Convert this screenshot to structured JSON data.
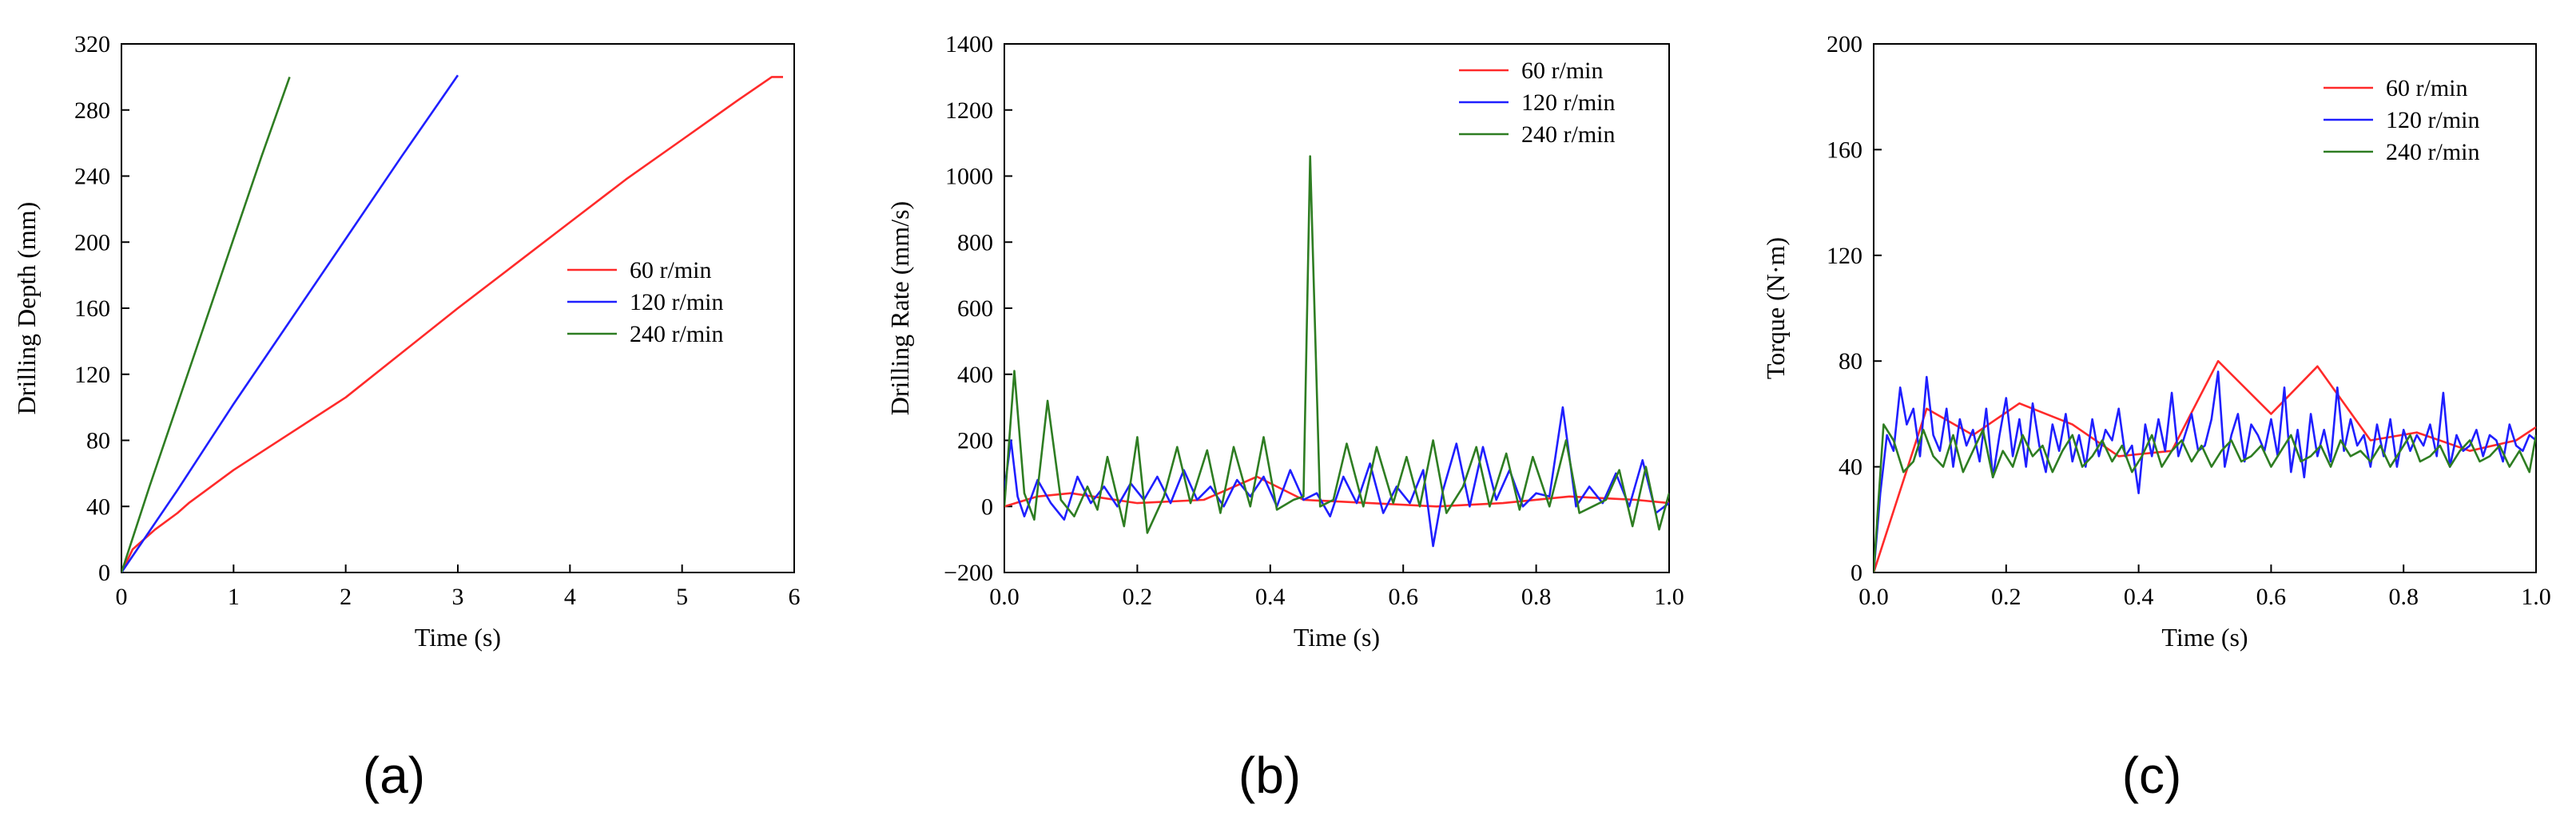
{
  "colors": {
    "s60": "#ff2a2a",
    "s120": "#1f1fff",
    "s240": "#2e7d22"
  },
  "chart_data": [
    {
      "type": "line",
      "panel_label": "(a)",
      "xlabel": "Time (s)",
      "ylabel": "Drilling Depth (mm)",
      "xlim": [
        0,
        6
      ],
      "ylim": [
        0,
        320
      ],
      "xticks": [
        0,
        1,
        2,
        3,
        4,
        5,
        6
      ],
      "xtick_labels": [
        "0",
        "1",
        "2",
        "3",
        "4",
        "5",
        "6"
      ],
      "yticks": [
        0,
        40,
        80,
        120,
        160,
        200,
        240,
        280,
        320
      ],
      "ytick_labels": [
        "0",
        "40",
        "80",
        "120",
        "160",
        "200",
        "240",
        "280",
        "320"
      ],
      "legend_position": "middle-right",
      "series": [
        {
          "name": "60 r/min",
          "color": "#ff2a2a",
          "x": [
            0,
            0.1,
            0.3,
            0.5,
            0.6,
            1.0,
            1.5,
            2.0,
            2.5,
            3.0,
            3.5,
            4.0,
            4.5,
            5.0,
            5.5,
            5.8,
            5.9
          ],
          "y": [
            0,
            14,
            26,
            36,
            42,
            62,
            84,
            106,
            133,
            160,
            186,
            212,
            238,
            262,
            286,
            300,
            300
          ]
        },
        {
          "name": "120 r/min",
          "color": "#1f1fff",
          "x": [
            0,
            0.5,
            1.0,
            1.5,
            2.0,
            2.5,
            3.0
          ],
          "y": [
            0,
            50,
            102,
            152,
            202,
            252,
            301
          ]
        },
        {
          "name": "240 r/min",
          "color": "#2e7d22",
          "x": [
            0,
            0.25,
            0.5,
            0.75,
            1.0,
            1.25,
            1.5
          ],
          "y": [
            0,
            52,
            102,
            152,
            202,
            252,
            300
          ]
        }
      ]
    },
    {
      "type": "line",
      "panel_label": "(b)",
      "xlabel": "Time (s)",
      "ylabel": "Drilling Rate (mm/s)",
      "xlim": [
        0,
        1
      ],
      "ylim": [
        -200,
        1400
      ],
      "xticks": [
        0,
        0.2,
        0.4,
        0.6,
        0.8,
        1.0
      ],
      "xtick_labels": [
        "0.0",
        "0.2",
        "0.4",
        "0.6",
        "0.8",
        "1.0"
      ],
      "yticks": [
        -200,
        0,
        200,
        400,
        600,
        800,
        1000,
        1200,
        1400
      ],
      "ytick_labels": [
        "−200",
        "0",
        "200",
        "400",
        "600",
        "800",
        "1000",
        "1200",
        "1400"
      ],
      "legend_position": "top-right",
      "series": [
        {
          "name": "60 r/min",
          "color": "#ff2a2a",
          "x": [
            0,
            0.05,
            0.1,
            0.2,
            0.3,
            0.38,
            0.45,
            0.55,
            0.65,
            0.75,
            0.85,
            0.95,
            1.0
          ],
          "y": [
            0,
            30,
            40,
            10,
            20,
            90,
            20,
            10,
            0,
            10,
            30,
            20,
            10
          ]
        },
        {
          "name": "120 r/min",
          "color": "#1f1fff",
          "x": [
            0,
            0.01,
            0.02,
            0.03,
            0.05,
            0.07,
            0.09,
            0.11,
            0.13,
            0.15,
            0.17,
            0.19,
            0.21,
            0.23,
            0.25,
            0.27,
            0.29,
            0.31,
            0.33,
            0.35,
            0.37,
            0.39,
            0.41,
            0.43,
            0.45,
            0.47,
            0.49,
            0.51,
            0.53,
            0.55,
            0.57,
            0.59,
            0.61,
            0.63,
            0.645,
            0.66,
            0.68,
            0.7,
            0.72,
            0.74,
            0.76,
            0.78,
            0.8,
            0.82,
            0.84,
            0.86,
            0.88,
            0.9,
            0.92,
            0.94,
            0.96,
            0.98,
            1.0
          ],
          "y": [
            50,
            200,
            30,
            -30,
            80,
            10,
            -40,
            90,
            10,
            60,
            0,
            70,
            20,
            90,
            10,
            110,
            20,
            60,
            0,
            80,
            30,
            90,
            0,
            110,
            20,
            40,
            -30,
            90,
            10,
            130,
            -20,
            60,
            10,
            110,
            -120,
            50,
            190,
            0,
            180,
            20,
            110,
            0,
            40,
            30,
            300,
            0,
            60,
            10,
            100,
            0,
            140,
            -20,
            10
          ]
        },
        {
          "name": "240 r/min",
          "color": "#2e7d22",
          "x": [
            0,
            0.015,
            0.03,
            0.045,
            0.065,
            0.085,
            0.105,
            0.125,
            0.14,
            0.155,
            0.18,
            0.2,
            0.215,
            0.24,
            0.26,
            0.28,
            0.305,
            0.325,
            0.345,
            0.37,
            0.39,
            0.41,
            0.435,
            0.45,
            0.46,
            0.475,
            0.495,
            0.515,
            0.54,
            0.56,
            0.585,
            0.605,
            0.625,
            0.645,
            0.665,
            0.69,
            0.71,
            0.73,
            0.755,
            0.775,
            0.795,
            0.82,
            0.845,
            0.865,
            0.885,
            0.905,
            0.925,
            0.945,
            0.965,
            0.985,
            1.0
          ],
          "y": [
            0,
            410,
            40,
            -40,
            320,
            20,
            -30,
            60,
            -10,
            150,
            -60,
            210,
            -80,
            30,
            180,
            10,
            170,
            -20,
            180,
            0,
            210,
            -10,
            20,
            30,
            1060,
            0,
            20,
            190,
            0,
            180,
            10,
            150,
            0,
            200,
            -20,
            60,
            180,
            0,
            160,
            -10,
            150,
            0,
            200,
            -20,
            0,
            20,
            110,
            -60,
            120,
            -70,
            40
          ]
        }
      ]
    },
    {
      "type": "line",
      "panel_label": "(c)",
      "xlabel": "Time (s)",
      "ylabel": "Torque (N·m)",
      "xlim": [
        0,
        1
      ],
      "ylim": [
        0,
        200
      ],
      "xticks": [
        0,
        0.2,
        0.4,
        0.6,
        0.8,
        1.0
      ],
      "xtick_labels": [
        "0.0",
        "0.2",
        "0.4",
        "0.6",
        "0.8",
        "1.0"
      ],
      "yticks": [
        0,
        40,
        80,
        120,
        160,
        200
      ],
      "ytick_labels": [
        "0",
        "40",
        "80",
        "120",
        "160",
        "200"
      ],
      "legend_position": "top-right",
      "series": [
        {
          "name": "60 r/min",
          "color": "#ff2a2a",
          "x": [
            0,
            0.08,
            0.15,
            0.22,
            0.3,
            0.37,
            0.45,
            0.52,
            0.6,
            0.67,
            0.75,
            0.82,
            0.9,
            0.97,
            1.0
          ],
          "y": [
            0,
            62,
            52,
            64,
            56,
            44,
            46,
            80,
            60,
            78,
            50,
            53,
            46,
            50,
            55
          ]
        },
        {
          "name": "120 r/min",
          "color": "#1f1fff",
          "x": [
            0,
            0.01,
            0.02,
            0.03,
            0.04,
            0.05,
            0.06,
            0.07,
            0.08,
            0.09,
            0.1,
            0.11,
            0.12,
            0.13,
            0.14,
            0.15,
            0.16,
            0.17,
            0.18,
            0.19,
            0.2,
            0.21,
            0.22,
            0.23,
            0.24,
            0.25,
            0.26,
            0.27,
            0.28,
            0.29,
            0.3,
            0.31,
            0.32,
            0.33,
            0.34,
            0.35,
            0.36,
            0.37,
            0.38,
            0.39,
            0.4,
            0.41,
            0.42,
            0.43,
            0.44,
            0.45,
            0.46,
            0.47,
            0.48,
            0.49,
            0.5,
            0.51,
            0.52,
            0.53,
            0.54,
            0.55,
            0.56,
            0.57,
            0.58,
            0.59,
            0.6,
            0.61,
            0.62,
            0.63,
            0.64,
            0.65,
            0.66,
            0.67,
            0.68,
            0.69,
            0.7,
            0.71,
            0.72,
            0.73,
            0.74,
            0.75,
            0.76,
            0.77,
            0.78,
            0.79,
            0.8,
            0.81,
            0.82,
            0.83,
            0.84,
            0.85,
            0.86,
            0.87,
            0.88,
            0.89,
            0.9,
            0.91,
            0.92,
            0.93,
            0.94,
            0.95,
            0.96,
            0.97,
            0.98,
            0.99,
            1.0
          ],
          "y": [
            0,
            30,
            52,
            46,
            70,
            56,
            62,
            44,
            74,
            52,
            46,
            62,
            40,
            58,
            48,
            54,
            42,
            62,
            36,
            52,
            66,
            44,
            58,
            40,
            64,
            48,
            38,
            56,
            46,
            60,
            42,
            52,
            40,
            58,
            44,
            54,
            50,
            62,
            44,
            48,
            30,
            56,
            44,
            58,
            46,
            68,
            44,
            52,
            60,
            46,
            48,
            58,
            76,
            40,
            52,
            60,
            42,
            56,
            52,
            46,
            58,
            44,
            70,
            38,
            54,
            36,
            60,
            44,
            54,
            42,
            70,
            46,
            58,
            48,
            52,
            40,
            56,
            44,
            58,
            40,
            54,
            46,
            52,
            48,
            56,
            44,
            68,
            40,
            52,
            46,
            48,
            54,
            44,
            52,
            50,
            42,
            56,
            48,
            46,
            52,
            50
          ]
        },
        {
          "name": "240 r/min",
          "color": "#2e7d22",
          "x": [
            0,
            0.015,
            0.03,
            0.045,
            0.06,
            0.075,
            0.09,
            0.105,
            0.12,
            0.135,
            0.15,
            0.165,
            0.18,
            0.195,
            0.21,
            0.225,
            0.24,
            0.255,
            0.27,
            0.285,
            0.3,
            0.315,
            0.33,
            0.345,
            0.36,
            0.375,
            0.39,
            0.405,
            0.42,
            0.435,
            0.45,
            0.465,
            0.48,
            0.495,
            0.51,
            0.525,
            0.54,
            0.555,
            0.57,
            0.585,
            0.6,
            0.615,
            0.63,
            0.645,
            0.66,
            0.675,
            0.69,
            0.705,
            0.72,
            0.735,
            0.75,
            0.765,
            0.78,
            0.795,
            0.81,
            0.825,
            0.84,
            0.855,
            0.87,
            0.885,
            0.9,
            0.915,
            0.93,
            0.945,
            0.96,
            0.975,
            0.99,
            1.0
          ],
          "y": [
            0,
            56,
            50,
            38,
            42,
            54,
            44,
            40,
            52,
            38,
            46,
            54,
            36,
            46,
            40,
            52,
            44,
            48,
            38,
            46,
            52,
            40,
            44,
            50,
            42,
            48,
            38,
            44,
            52,
            40,
            46,
            50,
            42,
            48,
            40,
            46,
            50,
            42,
            44,
            48,
            40,
            46,
            52,
            42,
            44,
            48,
            40,
            50,
            44,
            46,
            42,
            48,
            40,
            46,
            52,
            42,
            44,
            48,
            40,
            46,
            50,
            42,
            44,
            48,
            40,
            46,
            38,
            52
          ]
        }
      ]
    }
  ]
}
